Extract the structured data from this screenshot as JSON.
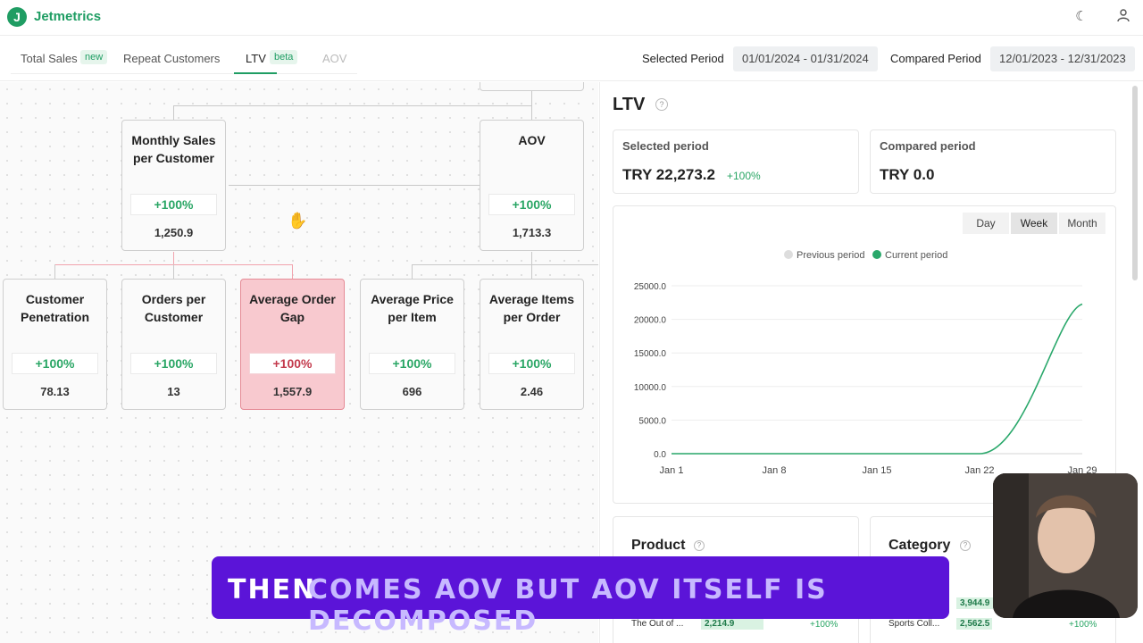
{
  "header": {
    "brand": "Jetmetrics",
    "logo_letter": "J",
    "icons": [
      "moon-sparkle-icon",
      "user-icon"
    ]
  },
  "tabs": [
    {
      "label": "Total Sales",
      "badge": "new"
    },
    {
      "label": "Repeat Customers",
      "badge": ""
    },
    {
      "label": "LTV",
      "badge": "beta"
    },
    {
      "label": "AOV",
      "badge": ""
    }
  ],
  "periods": {
    "selected_label": "Selected Period",
    "selected_value": "01/01/2024 - 01/31/2024",
    "compared_label": "Compared Period",
    "compared_value": "12/01/2023 - 12/31/2023"
  },
  "tree": {
    "monthly_sales": {
      "title": "Monthly Sales per Customer",
      "delta": "+100%",
      "value": "1,250.9"
    },
    "aov": {
      "title": "AOV",
      "delta": "+100%",
      "value": "1,713.3"
    },
    "customer_penetration": {
      "title": "Customer Penetration",
      "delta": "+100%",
      "value": "78.13"
    },
    "orders_per_customer": {
      "title": "Orders per Customer",
      "delta": "+100%",
      "value": "13"
    },
    "average_order_gap": {
      "title": "Average Order Gap",
      "delta": "+100%",
      "value": "1,557.9"
    },
    "average_price_per_item": {
      "title": "Average Price per Item",
      "delta": "+100%",
      "value": "696"
    },
    "average_items_per_order": {
      "title": "Average Items per Order",
      "delta": "+100%",
      "value": "2.46"
    }
  },
  "panel": {
    "title": "LTV",
    "help": "?",
    "selected": {
      "label": "Selected period",
      "value": "TRY 22,273.2",
      "delta": "+100%"
    },
    "compared": {
      "label": "Compared period",
      "value": "TRY 0.0"
    },
    "granularity": [
      "Day",
      "Week",
      "Month"
    ],
    "granularity_selected": "Week",
    "product_title": "Product",
    "category_title": "Category"
  },
  "chart_data": {
    "type": "line",
    "x": [
      "Jan 1",
      "Jan 8",
      "Jan 15",
      "Jan 22",
      "Jan 29"
    ],
    "series": [
      {
        "name": "Previous period",
        "color": "#dddddd",
        "values": [
          0,
          0,
          0,
          0,
          0
        ]
      },
      {
        "name": "Current period",
        "color": "#2aa86b",
        "values": [
          0,
          0,
          0,
          0,
          22273.2
        ]
      }
    ],
    "yticks": [
      "25000.0",
      "20000.0",
      "15000.0",
      "10000.0",
      "5000.0",
      "0.0"
    ],
    "ylim": [
      0,
      25000
    ],
    "legend": "top"
  },
  "tables": {
    "product_rows": [
      {
        "name": "The Out of ...",
        "value": "2,214.9",
        "delta": "+100%"
      }
    ],
    "category_rows": [
      {
        "name": "",
        "value": "3,944.9",
        "delta": ""
      },
      {
        "name": "Sports Coll...",
        "value": "2,562.5",
        "delta": "+100%"
      }
    ]
  },
  "caption": {
    "first": "THEN",
    "rest": "COMES AOV BUT AOV ITSELF IS DECOMPOSED"
  }
}
